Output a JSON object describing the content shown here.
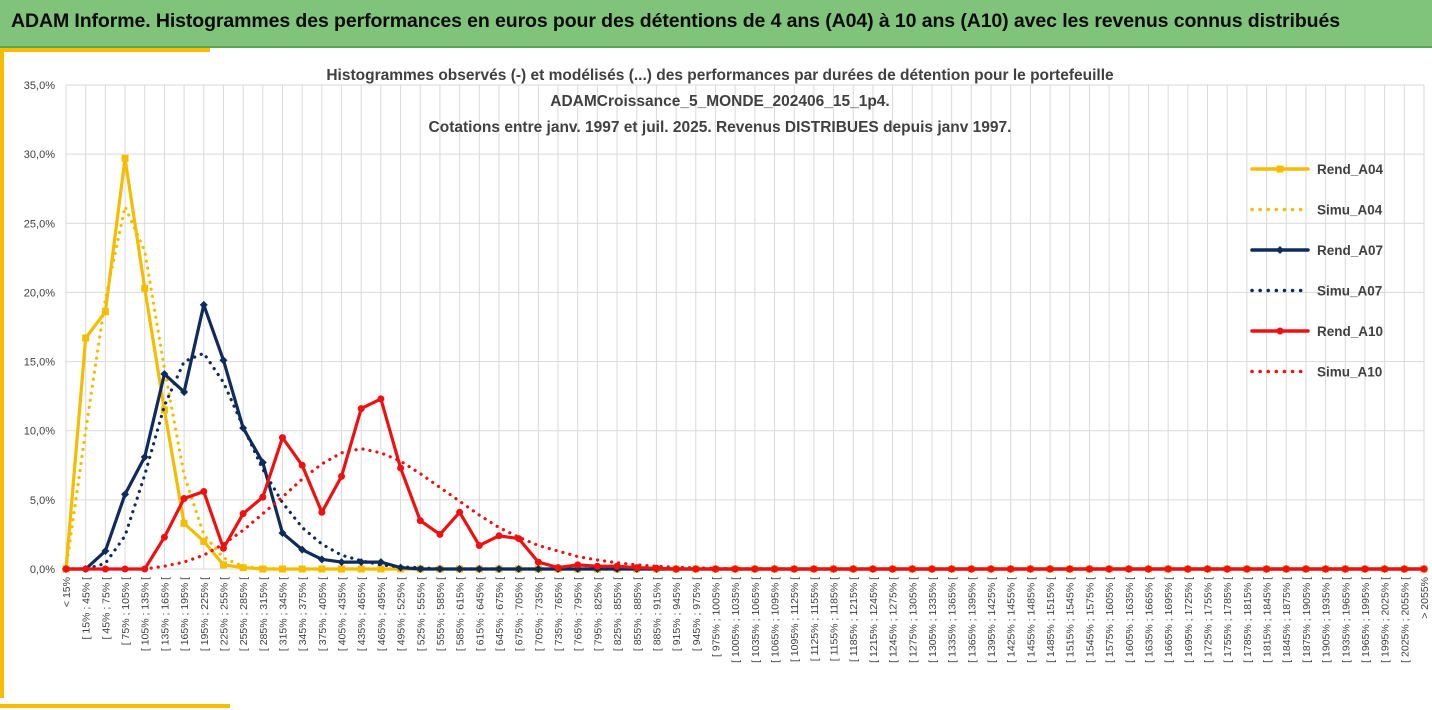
{
  "banner": {
    "title": "ADAM Informe. Histogrammes des performances en euros pour des détentions de 4 ans (A04) à 10 ans (A10) avec les revenus connus distribués"
  },
  "colors": {
    "banner_bg": "#7fc47a",
    "frame_accent": "#f5bc00",
    "A04": "#f5bc00",
    "A07": "#0f2b5b",
    "A10": "#ee1111",
    "grid": "#d9d9d9"
  },
  "chart_data": {
    "type": "line",
    "title": [
      "Histogrammes observés (-) et modélisés (...) des performances par durées de détention pour le portefeuille",
      "ADAMCroissance_5_MONDE_202406_15_1p4.",
      "Cotations entre janv. 1997 et juil. 2025. Revenus DISTRIBUES depuis janv 1997."
    ],
    "xlabel": "",
    "ylabel": "",
    "ylim": [
      0,
      35
    ],
    "y_ticks": [
      "0,0%",
      "5,0%",
      "10,0%",
      "15,0%",
      "20,0%",
      "25,0%",
      "30,0%",
      "35,0%"
    ],
    "grid": true,
    "legend_position": "right",
    "categories": [
      "< 15%",
      "[ 15% ; 45% [",
      "[ 45% ; 75% [",
      "[ 75% ; 105% [",
      "[ 105% ; 135% [",
      "[ 135% ; 165% [",
      "[ 165% ; 195% [",
      "[ 195% ; 225% [",
      "[ 225% ; 255% [",
      "[ 255% ; 285% [",
      "[ 285% ; 315% [",
      "[ 315% ; 345% [",
      "[ 345% ; 375% [",
      "[ 375% ; 405% [",
      "[ 405% ; 435% [",
      "[ 435% ; 465% [",
      "[ 465% ; 495% [",
      "[ 495% ; 525% [",
      "[ 525% ; 555% [",
      "[ 555% ; 585% [",
      "[ 585% ; 615% [",
      "[ 615% ; 645% [",
      "[ 645% ; 675% [",
      "[ 675% ; 705% [",
      "[ 705% ; 735% [",
      "[ 735% ; 765% [",
      "[ 765% ; 795% [",
      "[ 795% ; 825% [",
      "[ 825% ; 855% [",
      "[ 855% ; 885% [",
      "[ 885% ; 915% [",
      "[ 915% ; 945% [",
      "[ 945% ; 975% [",
      "[ 975% ; 1005% [",
      "[ 1005% ; 1035% [",
      "[ 1035% ; 1065% [",
      "[ 1065% ; 1095% [",
      "[ 1095% ; 1125% [",
      "[ 1125% ; 1155% [",
      "[ 1155% ; 1185% [",
      "[ 1185% ; 1215% [",
      "[ 1215% ; 1245% [",
      "[ 1245% ; 1275% [",
      "[ 1275% ; 1305% [",
      "[ 1305% ; 1335% [",
      "[ 1335% ; 1365% [",
      "[ 1365% ; 1395% [",
      "[ 1395% ; 1425% [",
      "[ 1425% ; 1455% [",
      "[ 1455% ; 1485% [",
      "[ 1485% ; 1515% [",
      "[ 1515% ; 1545% [",
      "[ 1545% ; 1575% [",
      "[ 1575% ; 1605% [",
      "[ 1605% ; 1635% [",
      "[ 1635% ; 1665% [",
      "[ 1665% ; 1695% [",
      "[ 1695% ; 1725% [",
      "[ 1725% ; 1755% [",
      "[ 1755% ; 1785% [",
      "[ 1785% ; 1815% [",
      "[ 1815% ; 1845% [",
      "[ 1845% ; 1875% [",
      "[ 1875% ; 1905% [",
      "[ 1905% ; 1935% [",
      "[ 1935% ; 1965% [",
      "[ 1965% ; 1995% [",
      "[ 1995% ; 2025% [",
      "[ 2025% ; 2055% [",
      "> 2055%"
    ],
    "series": [
      {
        "name": "Rend_A04",
        "style": "solid",
        "marker": "square",
        "color": "#f5bc00",
        "values": [
          0.0,
          16.7,
          18.6,
          29.7,
          20.3,
          11.5,
          3.3,
          2.0,
          0.3,
          0.1,
          0,
          0,
          0,
          0,
          0,
          0,
          0,
          0,
          0,
          0,
          0,
          0,
          0,
          0,
          0,
          0,
          0,
          0,
          0,
          0,
          0,
          0,
          0,
          0,
          0,
          0,
          0,
          0,
          0,
          0,
          0,
          0,
          0,
          0,
          0,
          0,
          0,
          0,
          0,
          0,
          0,
          0,
          0,
          0,
          0,
          0,
          0,
          0,
          0,
          0,
          0,
          0,
          0,
          0,
          0,
          0,
          0,
          0,
          0,
          0
        ]
      },
      {
        "name": "Simu_A04",
        "style": "dotted",
        "marker": "none",
        "color": "#f5bc00",
        "values": [
          0.0,
          10.0,
          19.5,
          26.2,
          23.0,
          14.5,
          6.8,
          2.5,
          0.8,
          0.2,
          0.05,
          0,
          0,
          0,
          0,
          0,
          0,
          0,
          0,
          0,
          0,
          0,
          0,
          0,
          0,
          0,
          0,
          0,
          0,
          0,
          0,
          0,
          0,
          0,
          0,
          0,
          0,
          0,
          0,
          0,
          0,
          0,
          0,
          0,
          0,
          0,
          0,
          0,
          0,
          0,
          0,
          0,
          0,
          0,
          0,
          0,
          0,
          0,
          0,
          0,
          0,
          0,
          0,
          0,
          0,
          0,
          0,
          0,
          0,
          0
        ]
      },
      {
        "name": "Rend_A07",
        "style": "solid",
        "marker": "diamond",
        "color": "#0f2b5b",
        "values": [
          0,
          0,
          1.3,
          5.4,
          8.1,
          14.1,
          12.8,
          19.1,
          15.1,
          10.2,
          7.7,
          2.6,
          1.4,
          0.7,
          0.5,
          0.5,
          0.5,
          0.1,
          0,
          0,
          0,
          0,
          0,
          0,
          0,
          0,
          0,
          0,
          0,
          0,
          0,
          0,
          0,
          0,
          0,
          0,
          0,
          0,
          0,
          0,
          0,
          0,
          0,
          0,
          0,
          0,
          0,
          0,
          0,
          0,
          0,
          0,
          0,
          0,
          0,
          0,
          0,
          0,
          0,
          0,
          0,
          0,
          0,
          0,
          0,
          0,
          0,
          0,
          0,
          0
        ]
      },
      {
        "name": "Simu_A07",
        "style": "dotted",
        "marker": "none",
        "color": "#0f2b5b",
        "values": [
          0,
          0,
          0.4,
          2.4,
          6.8,
          11.8,
          15.0,
          15.6,
          13.5,
          10.3,
          7.2,
          4.8,
          3.0,
          1.8,
          1.0,
          0.6,
          0.3,
          0.15,
          0.1,
          0,
          0,
          0,
          0,
          0,
          0,
          0,
          0,
          0,
          0,
          0,
          0,
          0,
          0,
          0,
          0,
          0,
          0,
          0,
          0,
          0,
          0,
          0,
          0,
          0,
          0,
          0,
          0,
          0,
          0,
          0,
          0,
          0,
          0,
          0,
          0,
          0,
          0,
          0,
          0,
          0,
          0,
          0,
          0,
          0,
          0,
          0,
          0,
          0,
          0,
          0
        ]
      },
      {
        "name": "Rend_A10",
        "style": "solid",
        "marker": "circle",
        "color": "#ee1111",
        "values": [
          0,
          0,
          0,
          0,
          0,
          2.3,
          5.1,
          5.6,
          1.5,
          4.0,
          5.2,
          9.5,
          7.5,
          4.1,
          6.7,
          11.6,
          12.3,
          7.3,
          3.5,
          2.5,
          4.1,
          1.7,
          2.4,
          2.2,
          0.5,
          0.1,
          0.3,
          0.2,
          0.2,
          0.1,
          0.05,
          0,
          0,
          0,
          0,
          0,
          0,
          0,
          0,
          0,
          0,
          0,
          0,
          0,
          0,
          0,
          0,
          0,
          0,
          0,
          0,
          0,
          0,
          0,
          0,
          0,
          0,
          0,
          0,
          0,
          0,
          0,
          0,
          0,
          0,
          0,
          0,
          0,
          0,
          0
        ]
      },
      {
        "name": "Simu_A10",
        "style": "dotted",
        "marker": "none",
        "color": "#ee1111",
        "values": [
          0,
          0,
          0,
          0,
          0,
          0.2,
          0.5,
          1.0,
          1.8,
          2.8,
          4.0,
          5.2,
          6.5,
          7.6,
          8.4,
          8.7,
          8.4,
          7.8,
          6.9,
          5.9,
          4.9,
          3.9,
          3.0,
          2.3,
          1.7,
          1.3,
          0.9,
          0.65,
          0.45,
          0.3,
          0.2,
          0.13,
          0.08,
          0.05,
          0.03,
          0.02,
          0.01,
          0,
          0,
          0,
          0,
          0,
          0,
          0,
          0,
          0,
          0,
          0,
          0,
          0,
          0,
          0,
          0,
          0,
          0,
          0,
          0,
          0,
          0,
          0,
          0,
          0,
          0,
          0,
          0,
          0,
          0,
          0,
          0,
          0
        ]
      }
    ]
  }
}
